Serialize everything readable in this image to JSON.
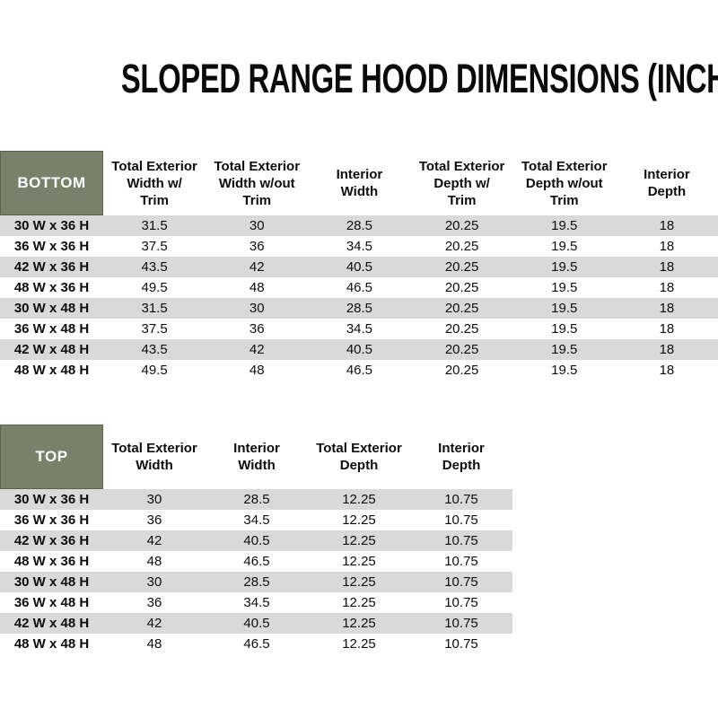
{
  "title": "SLOPED RANGE HOOD DIMENSIONS (INCHES)",
  "colors": {
    "header_green": "#78826B",
    "header_green_border": "#5C644E",
    "row_shade": "#D9D9D9",
    "row_plain": "#FFFFFF",
    "text": "#111111",
    "header_text": "#FFFFFF"
  },
  "bottom_table": {
    "label": "BOTTOM",
    "columns": [
      "Total Exterior\nWidth w/\nTrim",
      "Total Exterior\nWidth w/out\nTrim",
      "Interior\nWidth",
      "Total Exterior\nDepth w/\nTrim",
      "Total Exterior\nDepth w/out\nTrim",
      "Interior\nDepth"
    ],
    "rows": [
      {
        "size": "30 W x 36 H",
        "values": [
          "31.5",
          "30",
          "28.5",
          "20.25",
          "19.5",
          "18"
        ]
      },
      {
        "size": "36 W x 36 H",
        "values": [
          "37.5",
          "36",
          "34.5",
          "20.25",
          "19.5",
          "18"
        ]
      },
      {
        "size": "42 W x 36 H",
        "values": [
          "43.5",
          "42",
          "40.5",
          "20.25",
          "19.5",
          "18"
        ]
      },
      {
        "size": "48 W x 36 H",
        "values": [
          "49.5",
          "48",
          "46.5",
          "20.25",
          "19.5",
          "18"
        ]
      },
      {
        "size": "30 W x 48 H",
        "values": [
          "31.5",
          "30",
          "28.5",
          "20.25",
          "19.5",
          "18"
        ]
      },
      {
        "size": "36 W x 48 H",
        "values": [
          "37.5",
          "36",
          "34.5",
          "20.25",
          "19.5",
          "18"
        ]
      },
      {
        "size": "42 W x 48 H",
        "values": [
          "43.5",
          "42",
          "40.5",
          "20.25",
          "19.5",
          "18"
        ]
      },
      {
        "size": "48 W x 48 H",
        "values": [
          "49.5",
          "48",
          "46.5",
          "20.25",
          "19.5",
          "18"
        ]
      }
    ]
  },
  "top_table": {
    "label": "TOP",
    "columns": [
      "Total Exterior\nWidth",
      "Interior\nWidth",
      "Total Exterior\nDepth",
      "Interior\nDepth"
    ],
    "rows": [
      {
        "size": "30 W x 36 H",
        "values": [
          "30",
          "28.5",
          "12.25",
          "10.75"
        ]
      },
      {
        "size": "36 W x 36 H",
        "values": [
          "36",
          "34.5",
          "12.25",
          "10.75"
        ]
      },
      {
        "size": "42 W x 36 H",
        "values": [
          "42",
          "40.5",
          "12.25",
          "10.75"
        ]
      },
      {
        "size": "48 W x 36 H",
        "values": [
          "48",
          "46.5",
          "12.25",
          "10.75"
        ]
      },
      {
        "size": "30 W x 48 H",
        "values": [
          "30",
          "28.5",
          "12.25",
          "10.75"
        ]
      },
      {
        "size": "36 W x 48 H",
        "values": [
          "36",
          "34.5",
          "12.25",
          "10.75"
        ]
      },
      {
        "size": "42 W x 48 H",
        "values": [
          "42",
          "40.5",
          "12.25",
          "10.75"
        ]
      },
      {
        "size": "48 W x 48 H",
        "values": [
          "48",
          "46.5",
          "12.25",
          "10.75"
        ]
      }
    ]
  }
}
